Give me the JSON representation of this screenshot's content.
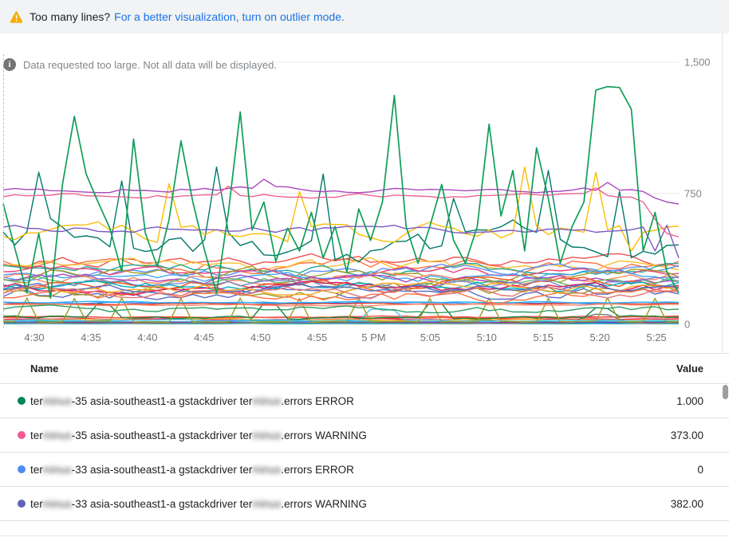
{
  "banner": {
    "icon": "warning-icon",
    "text": "Too many lines?",
    "link": "For a better visualization, turn on outlier mode."
  },
  "info": {
    "icon": "info-icon",
    "text": "Data requested too large. Not all data will be displayed."
  },
  "chart_data": {
    "type": "line",
    "title": "",
    "xlabel": "",
    "ylabel": "",
    "ylim": [
      0,
      1500
    ],
    "grid": true,
    "legend_position": "table-below",
    "x_ticks": [
      "4:30",
      "4:35",
      "4:40",
      "4:45",
      "4:50",
      "4:55",
      "5 PM",
      "5:05",
      "5:10",
      "5:15",
      "5:20",
      "5:25"
    ],
    "y_ticks": [
      {
        "label": "1,500",
        "value": 1500
      },
      {
        "label": "750",
        "value": 750
      },
      {
        "label": "0",
        "value": 0
      }
    ],
    "n_points": 58,
    "series": [
      {
        "color": "#E91E63",
        "base": 30,
        "amp": 6,
        "seed": 101
      },
      {
        "color": "#F4511E",
        "base": 38,
        "amp": 7,
        "seed": 102
      },
      {
        "color": "#26A69A",
        "base": 18,
        "amp": 5,
        "seed": 103
      },
      {
        "color": "#5C8DF6",
        "base": 12,
        "amp": 4,
        "seed": 104
      },
      {
        "color": "#FBC02D",
        "base": 25,
        "amp": 6,
        "seed": 105
      },
      {
        "color": "#8E24AA",
        "base": 10,
        "amp": 3,
        "seed": 106
      },
      {
        "color": "#EF5350",
        "base": 42,
        "amp": 8,
        "seed": 107
      },
      {
        "color": "#00ACC1",
        "base": 5,
        "amp": 2,
        "seed": 108
      },
      {
        "color": "#757575",
        "base": 8,
        "amp": 3,
        "seed": 109,
        "spikes": {
          "49": 40,
          "50": 58,
          "51": 55,
          "52": 30
        }
      },
      {
        "color": "#4FC3F7",
        "base": 22,
        "amp": 8,
        "seed": 110,
        "spikes": {
          "31": 85,
          "32": 90,
          "33": 80
        }
      },
      {
        "color": "#188038",
        "base": 38,
        "amp": 16,
        "seed": 111,
        "spikes": {
          "8": 120,
          "9": 110,
          "22": 120,
          "23": 115,
          "36": 125,
          "37": 118,
          "50": 95,
          "51": 90
        }
      },
      {
        "color": "#9E9D24",
        "base": 15,
        "amp": 8,
        "seed": 112,
        "spikes": {
          "2": 150,
          "6": 148,
          "10": 150,
          "15": 148,
          "20": 150,
          "25": 148,
          "30": 150,
          "36": 148,
          "41": 150,
          "46": 148,
          "51": 150,
          "55": 148
        }
      },
      {
        "color": "#4285F4",
        "base": 122,
        "amp": 9,
        "seed": 120
      },
      {
        "color": "#E53935",
        "base": 118,
        "amp": 7,
        "seed": 121
      },
      {
        "color": "#FF8A65",
        "base": 112,
        "amp": 8,
        "seed": 122
      },
      {
        "color": "#29B6F6",
        "base": 126,
        "amp": 7,
        "seed": 123
      },
      {
        "color": "#5C6BC0",
        "base": 175,
        "amp": 55,
        "seed": 130
      },
      {
        "color": "#9E9D24",
        "base": 195,
        "amp": 60,
        "seed": 131
      },
      {
        "color": "#FF7043",
        "base": 160,
        "amp": 55,
        "seed": 132
      },
      {
        "color": "#2E9E63",
        "base": 85,
        "amp": 32,
        "seed": 133
      },
      {
        "color": "#EF5350",
        "base": 360,
        "amp": 55,
        "seed": 140
      },
      {
        "color": "#FF7043",
        "base": 345,
        "amp": 60,
        "seed": 141
      },
      {
        "color": "#FBC02D",
        "base": 330,
        "amp": 55,
        "seed": 142
      },
      {
        "color": "#26A69A",
        "base": 318,
        "amp": 50,
        "seed": 143
      },
      {
        "color": "#5C8DF6",
        "base": 306,
        "amp": 58,
        "seed": 144
      },
      {
        "color": "#EC407A",
        "base": 295,
        "amp": 52,
        "seed": 145
      },
      {
        "color": "#9E9D24",
        "base": 285,
        "amp": 60,
        "seed": 146
      },
      {
        "color": "#42A5F5",
        "base": 275,
        "amp": 50,
        "seed": 147
      },
      {
        "color": "#FF8A65",
        "base": 265,
        "amp": 55,
        "seed": 148
      },
      {
        "color": "#AB47BC",
        "base": 255,
        "amp": 48,
        "seed": 149
      },
      {
        "color": "#66BB6A",
        "base": 245,
        "amp": 52,
        "seed": 150
      },
      {
        "color": "#F4511E",
        "base": 236,
        "amp": 55,
        "seed": 151
      },
      {
        "color": "#7986CB",
        "base": 228,
        "amp": 48,
        "seed": 152
      },
      {
        "color": "#00ACC1",
        "base": 220,
        "amp": 45,
        "seed": 153
      },
      {
        "color": "#D81B60",
        "base": 212,
        "amp": 50,
        "seed": 154
      },
      {
        "color": "#F9A825",
        "base": 205,
        "amp": 48,
        "seed": 155
      },
      {
        "color": "#5C6BC0",
        "base": 198,
        "amp": 45,
        "seed": 156
      },
      {
        "color": "#E57373",
        "base": 190,
        "amp": 50,
        "seed": 157
      },
      {
        "color": "#00796B",
        "base": 460,
        "amp": 160,
        "seed": 160,
        "spikes": {
          "3": 870,
          "10": 820,
          "18": 900,
          "27": 860,
          "38": 720,
          "46": 880,
          "52": 760
        }
      },
      {
        "color": "#FBBC04",
        "base": 520,
        "amp": 90,
        "seed": 161,
        "spikes": {
          "14": 805,
          "25": 760,
          "44": 900,
          "50": 870,
          "53": 420
        }
      },
      {
        "color": "#7E57C2",
        "base": 545,
        "amp": 35,
        "seed": 162,
        "spikes": {
          "55": 420,
          "57": 380
        }
      },
      {
        "color": "#AB47BC",
        "base": 770,
        "amp": 25,
        "seed": 163,
        "spikes": {
          "22": 830,
          "51": 812,
          "54": 760,
          "55": 722,
          "56": 700,
          "57": 688
        }
      },
      {
        "color": "#F06292",
        "base": 735,
        "amp": 22,
        "seed": 164,
        "spikes": {
          "19": 790,
          "50": 780,
          "54": 700,
          "55": 600,
          "56": 520,
          "57": 500
        }
      },
      {
        "color": "#0F9D58",
        "values": [
          690,
          430,
          180,
          520,
          150,
          800,
          1190,
          860,
          700,
          550,
          300,
          1060,
          520,
          330,
          600,
          1050,
          700,
          420,
          180,
          640,
          1215,
          540,
          700,
          360,
          550,
          420,
          640,
          380,
          560,
          300,
          660,
          480,
          700,
          1310,
          560,
          350,
          560,
          800,
          480,
          350,
          560,
          1145,
          620,
          880,
          420,
          1010,
          720,
          350,
          560,
          700,
          1340,
          1360,
          1355,
          1230,
          420,
          640,
          300,
          180
        ]
      }
    ]
  },
  "table": {
    "columns": [
      "Name",
      "Value"
    ],
    "rows": [
      {
        "color": "#00835C",
        "pre": "ter",
        "blur1": "minus",
        "mid": "-35 asia-southeast1-a gstackdriver ter",
        "blur2": "minus",
        "post": ".errors ERROR",
        "value": "1.000"
      },
      {
        "color": "#EF5A93",
        "pre": "ter",
        "blur1": "minus",
        "mid": "-35 asia-southeast1-a gstackdriver ter",
        "blur2": "minus",
        "post": ".errors WARNING",
        "value": "373.00"
      },
      {
        "color": "#4E8DF5",
        "pre": "ter",
        "blur1": "minus",
        "mid": "-33 asia-southeast1-a gstackdriver ter",
        "blur2": "minus",
        "post": ".errors ERROR",
        "value": "0"
      },
      {
        "color": "#5F63B8",
        "pre": "ter",
        "blur1": "minus",
        "mid": "-33 asia-southeast1-a gstackdriver ter",
        "blur2": "minus",
        "post": ".errors WARNING",
        "value": "382.00"
      }
    ]
  }
}
